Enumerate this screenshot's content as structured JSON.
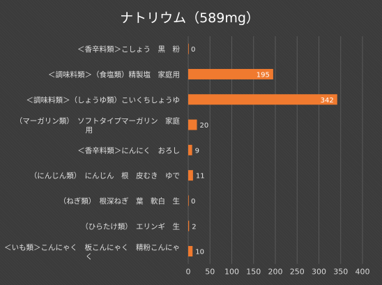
{
  "chart_data": {
    "type": "bar",
    "orientation": "horizontal",
    "title": "ナトリウム（589mg）",
    "categories": [
      "＜香辛料類＞こしょう　黒　粉",
      "＜調味料類＞（食塩類）精製塩　家庭用",
      "＜調味料類＞（しょうゆ類）こいくちしょうゆ",
      "（マーガリン類）　ソフトタイプマーガリン　家庭用",
      "＜香辛料類＞にんにく　おろし",
      "（にんじん類）　にんじん　根　皮むき　ゆで",
      "（ねぎ類）　根深ねぎ　葉　軟白　生",
      "（ひらたけ類）　エリンギ　生",
      "＜いも類＞こんにゃく　板こんにゃく　精粉こんにゃく"
    ],
    "values": [
      0,
      195,
      342,
      20,
      9,
      11,
      0,
      2,
      10
    ],
    "data_labels": [
      "0",
      "195",
      "342",
      "20",
      "9",
      "11",
      "0",
      "2",
      "10"
    ],
    "xlim": [
      0,
      400
    ],
    "xticks": [
      "0",
      "50",
      "100",
      "150",
      "200",
      "250",
      "300",
      "350",
      "400"
    ],
    "grid": true,
    "bar_color": "#f07a2f"
  }
}
